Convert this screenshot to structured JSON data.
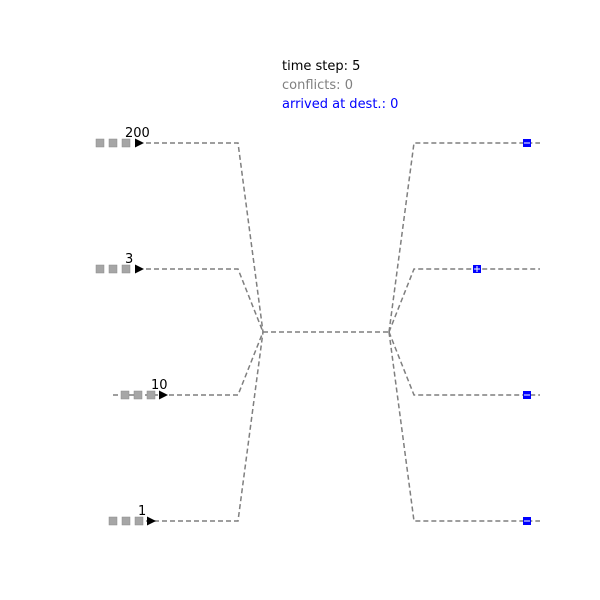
{
  "status": {
    "time_step_label": "time step:",
    "time_step_value": "5",
    "conflicts_label": "conflicts:",
    "conflicts_value": "0",
    "arrived_label": "arrived at dest.:",
    "arrived_value": "0"
  },
  "colors": {
    "track": "#7f7f7f",
    "queued_vehicle": "#a6a6a6",
    "head_vehicle": "#000000",
    "arrived_vehicle": "#0000ff",
    "time_step_text": "#000000",
    "conflicts_text": "#808080",
    "arrived_text": "#0000ff"
  },
  "sources": [
    {
      "label": "200",
      "queued": 3
    },
    {
      "label": "3",
      "queued": 3
    },
    {
      "label": "10",
      "queued": 3
    },
    {
      "label": "1",
      "queued": 3
    }
  ],
  "destinations": [
    {
      "vehicle_shape": "square-dash"
    },
    {
      "vehicle_shape": "square-plus"
    },
    {
      "vehicle_shape": "square-dash"
    },
    {
      "vehicle_shape": "square-dash"
    }
  ]
}
